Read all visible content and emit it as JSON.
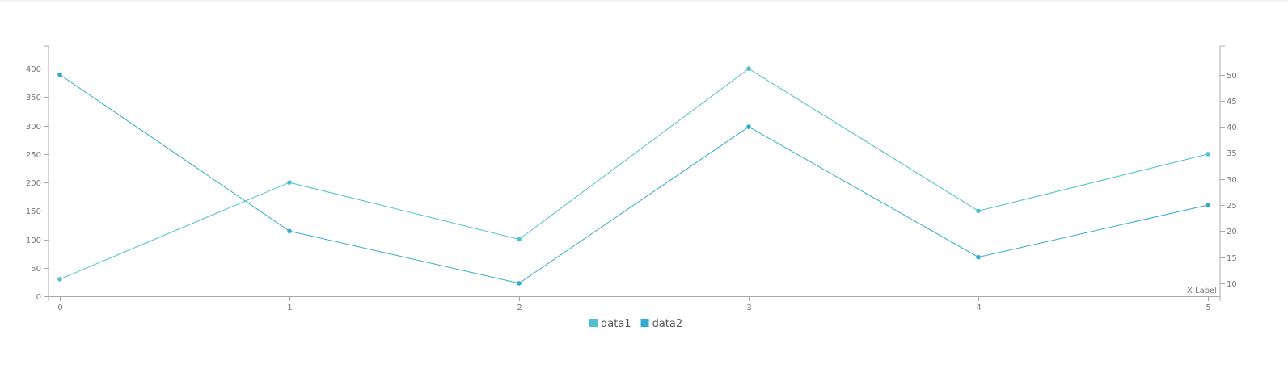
{
  "chart_data": {
    "type": "line",
    "x": [
      0,
      1,
      2,
      3,
      4,
      5
    ],
    "xlabel": "X Label",
    "ylim": [
      0,
      440
    ],
    "y2lim": [
      7.5,
      55.5
    ],
    "yticks": [
      0,
      50,
      100,
      150,
      200,
      250,
      300,
      350,
      400
    ],
    "y2ticks": [
      10,
      15,
      20,
      25,
      30,
      35,
      40,
      45,
      50
    ],
    "series": [
      {
        "name": "data1",
        "axis": "y",
        "color": "#4fc0cf",
        "values": [
          30,
          200,
          100,
          400,
          150,
          250
        ]
      },
      {
        "name": "data2",
        "axis": "y2",
        "color": "#33aad0",
        "values": [
          50,
          20,
          10,
          40,
          15,
          25
        ]
      }
    ],
    "grid": false,
    "legend": "bottom"
  }
}
